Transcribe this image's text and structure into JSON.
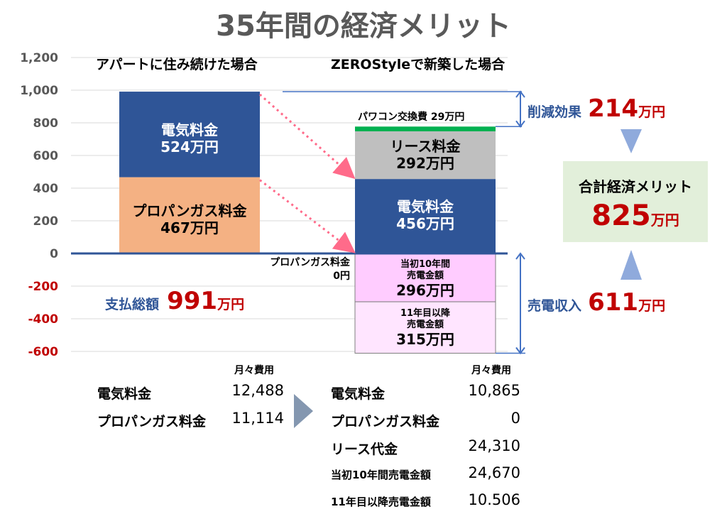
{
  "title": "35年間の経済メリット",
  "chart_data": {
    "type": "bar",
    "stacked": true,
    "ylim": [
      -600,
      1200
    ],
    "yticks": [
      1200,
      1000,
      800,
      600,
      400,
      200,
      0,
      -200,
      -400,
      -600
    ],
    "ytick_labels": [
      "1,200",
      "1,000",
      "800",
      "600",
      "400",
      "200",
      "0",
      "-200",
      "-400",
      "-600"
    ],
    "grid": true,
    "categories": [
      "アパートに住み続けた場合",
      "ZEROStyleで新築した場合"
    ],
    "series": [
      {
        "name": "プロパンガス料金",
        "values": [
          467,
          0
        ],
        "value_labels": [
          "467万円",
          "0円"
        ],
        "color": "#f4b183"
      },
      {
        "name": "電気料金",
        "values": [
          524,
          456
        ],
        "value_labels": [
          "524万円",
          "456万円"
        ],
        "color": "#2f5597"
      },
      {
        "name": "リース料金",
        "values": [
          0,
          292
        ],
        "value_labels": [
          "",
          "292万円"
        ],
        "color": "#bfbfbf"
      },
      {
        "name": "パワコン交換費",
        "values": [
          0,
          29
        ],
        "value_labels": [
          "",
          "29万円"
        ],
        "color": "#00b050"
      },
      {
        "name": "当初10年間売電金額",
        "values": [
          0,
          -296
        ],
        "value_labels": [
          "",
          "296万円"
        ],
        "color": "#ffccff"
      },
      {
        "name": "11年目以降売電金額",
        "values": [
          0,
          -315
        ],
        "value_labels": [
          "",
          "315万円"
        ],
        "color": "#ffe5ff"
      }
    ],
    "annotations": {
      "total_label": "支払総額",
      "total_value": "991",
      "reduction_label": "削減効果",
      "reduction_value": "214",
      "sales_label": "売電収入",
      "sales_value": "611",
      "merit_label": "合計経済メリット",
      "merit_value": "825",
      "unit": "万円",
      "lease_label": "リース料金",
      "powercon_label": "パワコン交換費 29万円",
      "electric_label": "電気料金",
      "gas_label": "プロパンガス料金",
      "gas_zero_label": "プロパンガス料金",
      "gas_zero_value": "0円",
      "sale1_label_a": "当初10年間",
      "sale1_label_b": "売電金額",
      "sale2_label_a": "11年目以降",
      "sale2_label_b": "売電金額"
    }
  },
  "table_left": {
    "header": "月々費用",
    "rows": [
      {
        "label": "電気料金",
        "value": "12,488"
      },
      {
        "label": "プロパンガス料金",
        "value": "11,114"
      }
    ]
  },
  "table_right": {
    "header": "月々費用",
    "rows": [
      {
        "label": "電気料金",
        "value": "10,865"
      },
      {
        "label": "プロパンガス料金",
        "value": "0"
      },
      {
        "label": "リース代金",
        "value": "24,310"
      },
      {
        "label": "当初10年間売電金額",
        "value": "24,670"
      },
      {
        "label": "11年目以降売電金額",
        "value": "10.506"
      }
    ]
  },
  "colors": {
    "accent_red": "#c00000",
    "accent_blue": "#2f5597",
    "arrow_blue": "#8faadc",
    "dotted_red": "#ff6b8a"
  }
}
